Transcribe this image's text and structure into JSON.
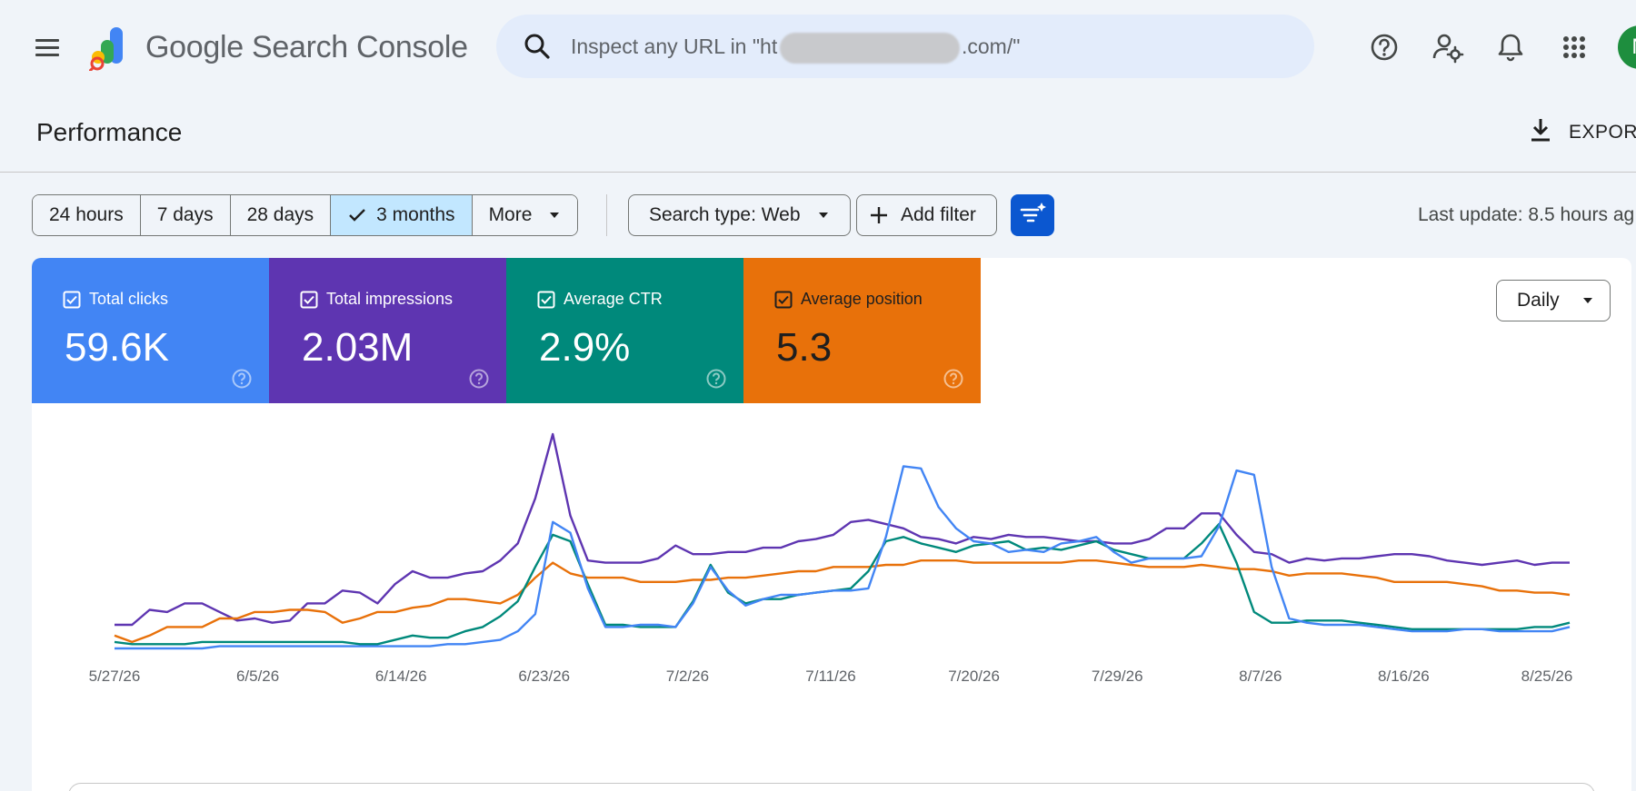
{
  "header": {
    "product_name": "Google Search Console",
    "search_placeholder": "Inspect any URL in \"ht",
    "search_suffix": ".com/\"",
    "avatar_initial": "N"
  },
  "page": {
    "title": "Performance",
    "export_label": "EXPORT"
  },
  "filters": {
    "date_ranges": [
      {
        "label": "24 hours",
        "selected": false
      },
      {
        "label": "7 days",
        "selected": false
      },
      {
        "label": "28 days",
        "selected": false
      },
      {
        "label": "3 months",
        "selected": true
      },
      {
        "label": "More",
        "selected": false
      }
    ],
    "search_type": "Search type: Web",
    "add_filter": "Add filter",
    "last_update": "Last update: 8.5 hours ag"
  },
  "metrics": [
    {
      "label": "Total clicks",
      "value": "59.6K",
      "color": "#4285f4"
    },
    {
      "label": "Total impressions",
      "value": "2.03M",
      "color": "#5e35b1"
    },
    {
      "label": "Average CTR",
      "value": "2.9%",
      "color": "#00897b"
    },
    {
      "label": "Average position",
      "value": "5.3",
      "color": "#e8710a"
    }
  ],
  "granularity": "Daily",
  "chart_data": {
    "type": "line",
    "title": "",
    "xlabel": "",
    "ylabel": "",
    "grid": false,
    "x_ticks": [
      "5/27/26",
      "6/5/26",
      "6/14/26",
      "6/23/26",
      "7/2/26",
      "7/11/26",
      "7/20/26",
      "7/29/26",
      "8/7/26",
      "8/16/26",
      "8/25/26"
    ],
    "ylim": [
      0,
      100
    ],
    "series": [
      {
        "color": "#5e35b1",
        "values": [
          11,
          11,
          18,
          17,
          21,
          21,
          17,
          13,
          14,
          12,
          13,
          21,
          21,
          27,
          26,
          21,
          30,
          36,
          33,
          33,
          35,
          36,
          41,
          49,
          70,
          100,
          62,
          41,
          40,
          40,
          40,
          42,
          48,
          44,
          44,
          45,
          45,
          47,
          47,
          50,
          51,
          53,
          59,
          60,
          58,
          56,
          52,
          51,
          49,
          52,
          51,
          53,
          52,
          52,
          51,
          50,
          50,
          49,
          49,
          51,
          56,
          56,
          63,
          63,
          53,
          45,
          44,
          40,
          42,
          41,
          42,
          42,
          43,
          44,
          44,
          43,
          41,
          40,
          39,
          40,
          41,
          39,
          40,
          40
        ]
      },
      {
        "color": "#e8710a",
        "values": [
          6,
          3,
          6,
          10,
          10,
          10,
          14,
          14,
          17,
          17,
          18,
          18,
          17,
          12,
          14,
          17,
          17,
          19,
          20,
          23,
          23,
          22,
          21,
          25,
          33,
          40,
          35,
          33,
          33,
          33,
          31,
          31,
          31,
          32,
          32,
          33,
          33,
          34,
          35,
          36,
          36,
          38,
          38,
          38,
          39,
          39,
          41,
          41,
          41,
          40,
          40,
          40,
          40,
          40,
          40,
          41,
          41,
          40,
          39,
          38,
          38,
          38,
          39,
          38,
          37,
          37,
          36,
          34,
          35,
          35,
          35,
          34,
          33,
          31,
          31,
          31,
          31,
          30,
          29,
          27,
          27,
          26,
          26,
          25
        ]
      },
      {
        "color": "#00897b",
        "values": [
          3,
          2,
          2,
          2,
          2,
          3,
          3,
          3,
          3,
          3,
          3,
          3,
          3,
          3,
          2,
          2,
          4,
          6,
          5,
          5,
          8,
          10,
          15,
          22,
          38,
          53,
          50,
          30,
          11,
          11,
          10,
          10,
          10,
          22,
          39,
          26,
          21,
          23,
          23,
          25,
          26,
          27,
          28,
          36,
          50,
          52,
          49,
          47,
          45,
          48,
          49,
          50,
          46,
          47,
          46,
          48,
          50,
          46,
          44,
          42,
          42,
          42,
          49,
          58,
          40,
          17,
          12,
          12,
          13,
          13,
          13,
          12,
          11,
          10,
          9,
          9,
          9,
          9,
          9,
          9,
          9,
          10,
          10,
          12
        ]
      },
      {
        "color": "#4285f4",
        "values": [
          0,
          0,
          0,
          0,
          0,
          0,
          1,
          1,
          1,
          1,
          1,
          1,
          1,
          1,
          1,
          1,
          1,
          1,
          1,
          2,
          2,
          3,
          4,
          8,
          16,
          59,
          54,
          28,
          10,
          10,
          11,
          11,
          10,
          21,
          38,
          27,
          20,
          23,
          25,
          25,
          26,
          27,
          27,
          28,
          52,
          85,
          84,
          66,
          56,
          50,
          49,
          45,
          46,
          45,
          49,
          50,
          52,
          45,
          40,
          42,
          42,
          42,
          43,
          57,
          83,
          81,
          38,
          14,
          12,
          11,
          11,
          11,
          10,
          9,
          8,
          8,
          8,
          9,
          9,
          8,
          8,
          8,
          8,
          10
        ]
      }
    ]
  }
}
